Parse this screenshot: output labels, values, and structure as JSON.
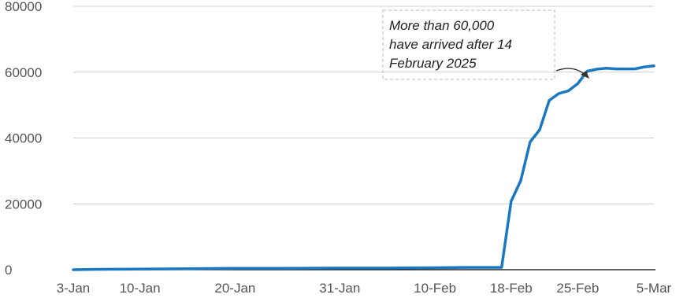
{
  "chart_data": {
    "type": "line",
    "title": "",
    "xlabel": "",
    "ylabel": "",
    "ylim": [
      0,
      80000
    ],
    "yticks": [
      "0",
      "20000",
      "40000",
      "60000",
      "80000"
    ],
    "xticks": [
      "3-Jan",
      "10-Jan",
      "20-Jan",
      "31-Jan",
      "10-Feb",
      "18-Feb",
      "25-Feb",
      "5-Mar"
    ],
    "grid": "horizontal",
    "colors": {
      "line": "#1a78c2",
      "grid": "#cfcfcf",
      "axis": "#000000",
      "annotation_border": "#bbbbbb"
    },
    "annotation": {
      "lines": [
        "More than 60,000",
        "have arrived after 14",
        "February 2025"
      ]
    },
    "series": [
      {
        "x": [
          "3-Jan",
          "5-Jan",
          "10-Jan",
          "15-Jan",
          "20-Jan",
          "25-Jan",
          "31-Jan",
          "5-Feb",
          "10-Feb",
          "13-Feb",
          "15-Feb",
          "16-Feb",
          "17-Feb",
          "18-Feb",
          "19-Feb",
          "20-Feb",
          "21-Feb",
          "22-Feb",
          "23-Feb",
          "24-Feb",
          "25-Feb",
          "26-Feb",
          "27-Feb",
          "28-Feb",
          "1-Mar",
          "2-Mar",
          "3-Mar",
          "4-Mar",
          "5-Mar"
        ],
        "values": [
          0,
          100,
          200,
          300,
          400,
          400,
          500,
          500,
          600,
          700,
          700,
          700,
          700,
          20800,
          27000,
          38800,
          42500,
          51400,
          53500,
          54300,
          56500,
          60300,
          60900,
          61200,
          61000,
          61000,
          61000,
          61600,
          61900
        ]
      }
    ]
  }
}
